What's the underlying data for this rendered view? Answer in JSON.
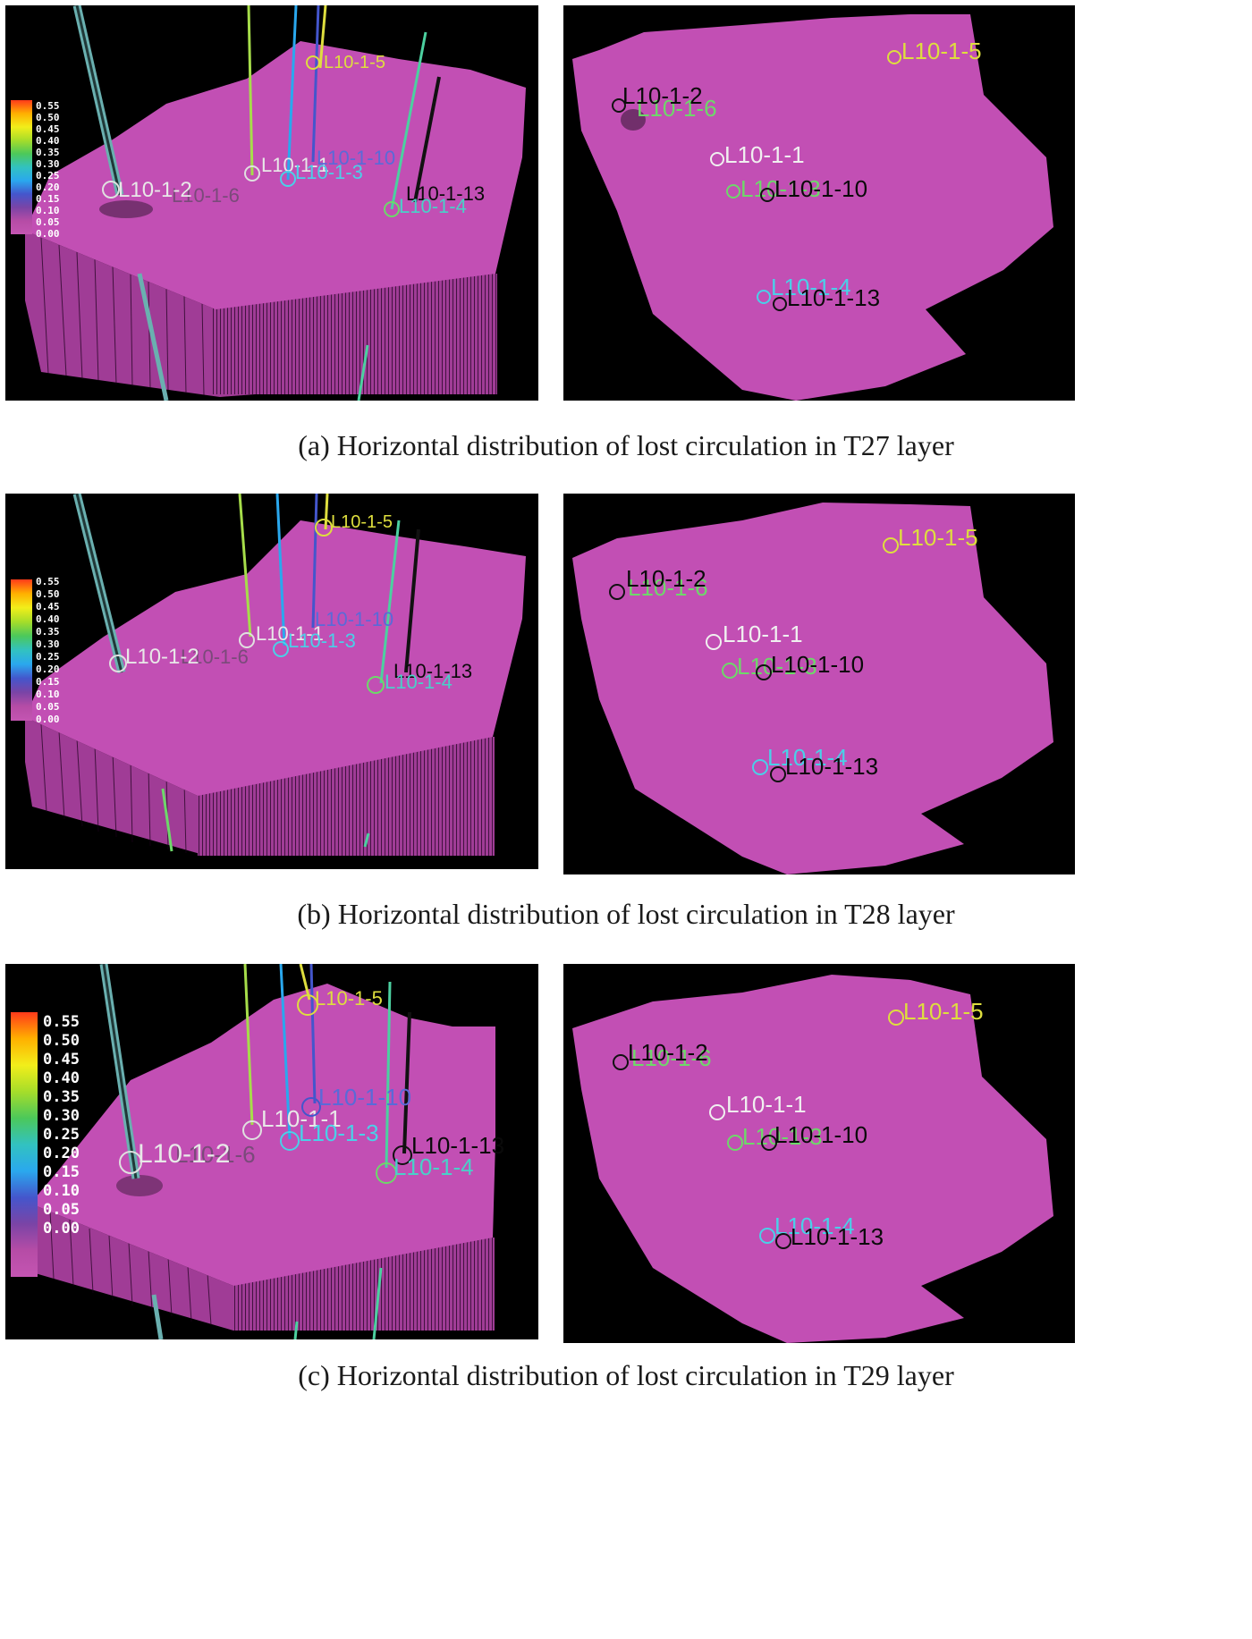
{
  "legend": {
    "ticks": [
      "0.55",
      "0.50",
      "0.45",
      "0.40",
      "0.35",
      "0.30",
      "0.25",
      "0.20",
      "0.15",
      "0.10",
      "0.05",
      "0.00"
    ],
    "gradient_colors": [
      "#ff3a1a",
      "#ffb000",
      "#f2ee1a",
      "#a6dd2a",
      "#4cc85a",
      "#32c2c0",
      "#2aa8ee",
      "#4456cc",
      "#7a44a6",
      "#b64ca6",
      "#c455b2"
    ]
  },
  "colors": {
    "surface": "#c24fb4",
    "background": "#000000",
    "well_yellow": "#dede3e",
    "well_white": "#f0f0f0",
    "well_cyan": "#4ad0e8",
    "well_blue": "#5a7ce0",
    "well_green": "#6ed86a",
    "well_black": "#0a0a0a"
  },
  "wells": {
    "w5": "L10-1-5",
    "w2": "L10-1-2",
    "w6": "L10-1-6",
    "w1": "L10-1-1",
    "w3": "L10-1-3",
    "w10": "L10-1-10",
    "w4": "L10-1-4",
    "w13": "L10-1-13"
  },
  "captions": {
    "a": "(a) Horizontal distribution of lost circulation in T27 layer",
    "b": "(b) Horizontal distribution of lost circulation in T28 layer",
    "c": "(c) Horizontal distribution of lost circulation in T29 layer"
  }
}
